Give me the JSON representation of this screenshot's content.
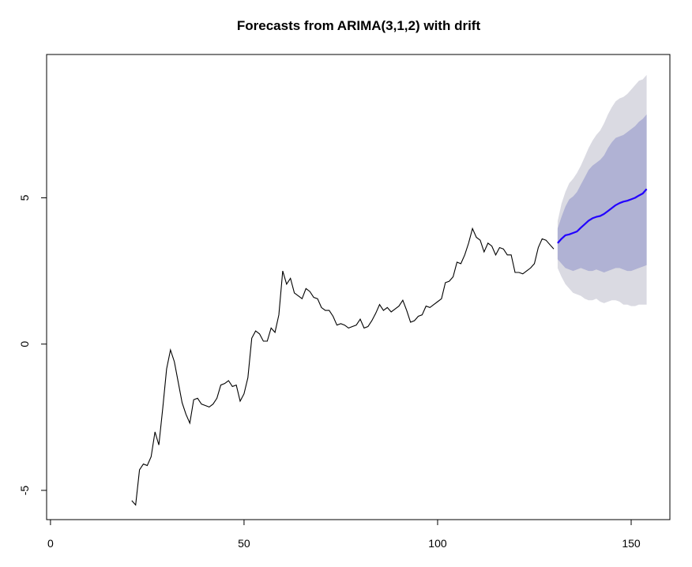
{
  "chart_data": {
    "type": "line",
    "title": "Forecasts from ARIMA(3,1,2) with drift",
    "xlabel": "",
    "ylabel": "",
    "xlim": [
      -1,
      160
    ],
    "ylim": [
      -6,
      9.9
    ],
    "x_ticks": [
      "0",
      "50",
      "100",
      "150"
    ],
    "x_tick_values": [
      0,
      50,
      100,
      150
    ],
    "y_ticks": [
      "-5",
      "0",
      "5"
    ],
    "y_tick_values": [
      -5,
      0,
      5
    ],
    "grid": false,
    "colors": {
      "history": "#000000",
      "forecast": "#2200ff",
      "band80": "#b0b2d4",
      "band95": "#dadae2"
    },
    "history": {
      "x": [
        21,
        22,
        23,
        24,
        25,
        26,
        27,
        28,
        29,
        30,
        31,
        32,
        33,
        34,
        35,
        36,
        37,
        38,
        39,
        40,
        41,
        42,
        43,
        44,
        45,
        46,
        47,
        48,
        49,
        50,
        51,
        52,
        53,
        54,
        55,
        56,
        57,
        58,
        59,
        60,
        61,
        62,
        63,
        64,
        65,
        66,
        67,
        68,
        69,
        70,
        71,
        72,
        73,
        74,
        75,
        76,
        77,
        78,
        79,
        80,
        81,
        82,
        83,
        84,
        85,
        86,
        87,
        88,
        89,
        90,
        91,
        92,
        93,
        94,
        95,
        96,
        97,
        98,
        99,
        100,
        101,
        102,
        103,
        104,
        105,
        106,
        107,
        108,
        109,
        110,
        111,
        112,
        113,
        114,
        115,
        116,
        117,
        118,
        119,
        120,
        121,
        122,
        123,
        124,
        125,
        126,
        127,
        128,
        129,
        130
      ],
      "y": [
        -5.35,
        -5.5,
        -4.3,
        -4.1,
        -4.15,
        -3.85,
        -3.0,
        -3.45,
        -2.2,
        -0.85,
        -0.2,
        -0.6,
        -1.3,
        -2.0,
        -2.4,
        -2.7,
        -1.9,
        -1.85,
        -2.05,
        -2.1,
        -2.15,
        -2.05,
        -1.85,
        -1.4,
        -1.35,
        -1.25,
        -1.45,
        -1.4,
        -1.95,
        -1.7,
        -1.15,
        0.2,
        0.45,
        0.35,
        0.1,
        0.1,
        0.55,
        0.4,
        1.0,
        2.5,
        2.05,
        2.25,
        1.75,
        1.65,
        1.55,
        1.9,
        1.8,
        1.6,
        1.55,
        1.25,
        1.15,
        1.15,
        0.95,
        0.65,
        0.7,
        0.65,
        0.55,
        0.6,
        0.65,
        0.85,
        0.55,
        0.6,
        0.8,
        1.05,
        1.35,
        1.15,
        1.25,
        1.1,
        1.2,
        1.3,
        1.5,
        1.15,
        0.75,
        0.8,
        0.95,
        1.0,
        1.3,
        1.25,
        1.35,
        1.45,
        1.55,
        2.1,
        2.15,
        2.3,
        2.8,
        2.75,
        3.05,
        3.45,
        3.95,
        3.65,
        3.55,
        3.15,
        3.45,
        3.35,
        3.05,
        3.3,
        3.25,
        3.05,
        3.05,
        2.45,
        2.45,
        2.4,
        2.5,
        2.6,
        2.75,
        3.3,
        3.6,
        3.55,
        3.4,
        3.25
      ]
    },
    "forecast": {
      "x": [
        131,
        132,
        133,
        134,
        135,
        136,
        137,
        138,
        139,
        140,
        141,
        142,
        143,
        144,
        145,
        146,
        147,
        148,
        149,
        150,
        151,
        152,
        153,
        154
      ],
      "mean": [
        3.45,
        3.6,
        3.72,
        3.75,
        3.8,
        3.85,
        3.98,
        4.1,
        4.22,
        4.3,
        4.35,
        4.38,
        4.45,
        4.55,
        4.65,
        4.75,
        4.82,
        4.87,
        4.9,
        4.95,
        5.0,
        5.08,
        5.15,
        5.3
      ],
      "lo80": [
        2.9,
        2.75,
        2.6,
        2.55,
        2.5,
        2.55,
        2.6,
        2.55,
        2.5,
        2.5,
        2.55,
        2.5,
        2.45,
        2.5,
        2.55,
        2.6,
        2.6,
        2.55,
        2.5,
        2.5,
        2.55,
        2.6,
        2.65,
        2.7
      ],
      "hi80": [
        3.95,
        4.35,
        4.7,
        4.95,
        5.05,
        5.2,
        5.45,
        5.7,
        5.95,
        6.1,
        6.2,
        6.3,
        6.45,
        6.7,
        6.9,
        7.05,
        7.1,
        7.15,
        7.25,
        7.35,
        7.45,
        7.6,
        7.7,
        7.85
      ],
      "lo95": [
        2.6,
        2.3,
        2.05,
        1.9,
        1.75,
        1.7,
        1.65,
        1.55,
        1.5,
        1.5,
        1.55,
        1.45,
        1.4,
        1.45,
        1.5,
        1.5,
        1.45,
        1.35,
        1.35,
        1.3,
        1.3,
        1.35,
        1.35,
        1.35
      ],
      "hi95": [
        4.2,
        4.8,
        5.2,
        5.5,
        5.65,
        5.85,
        6.1,
        6.4,
        6.7,
        6.95,
        7.15,
        7.3,
        7.55,
        7.85,
        8.1,
        8.3,
        8.4,
        8.45,
        8.55,
        8.7,
        8.85,
        9.0,
        9.05,
        9.2
      ]
    }
  }
}
